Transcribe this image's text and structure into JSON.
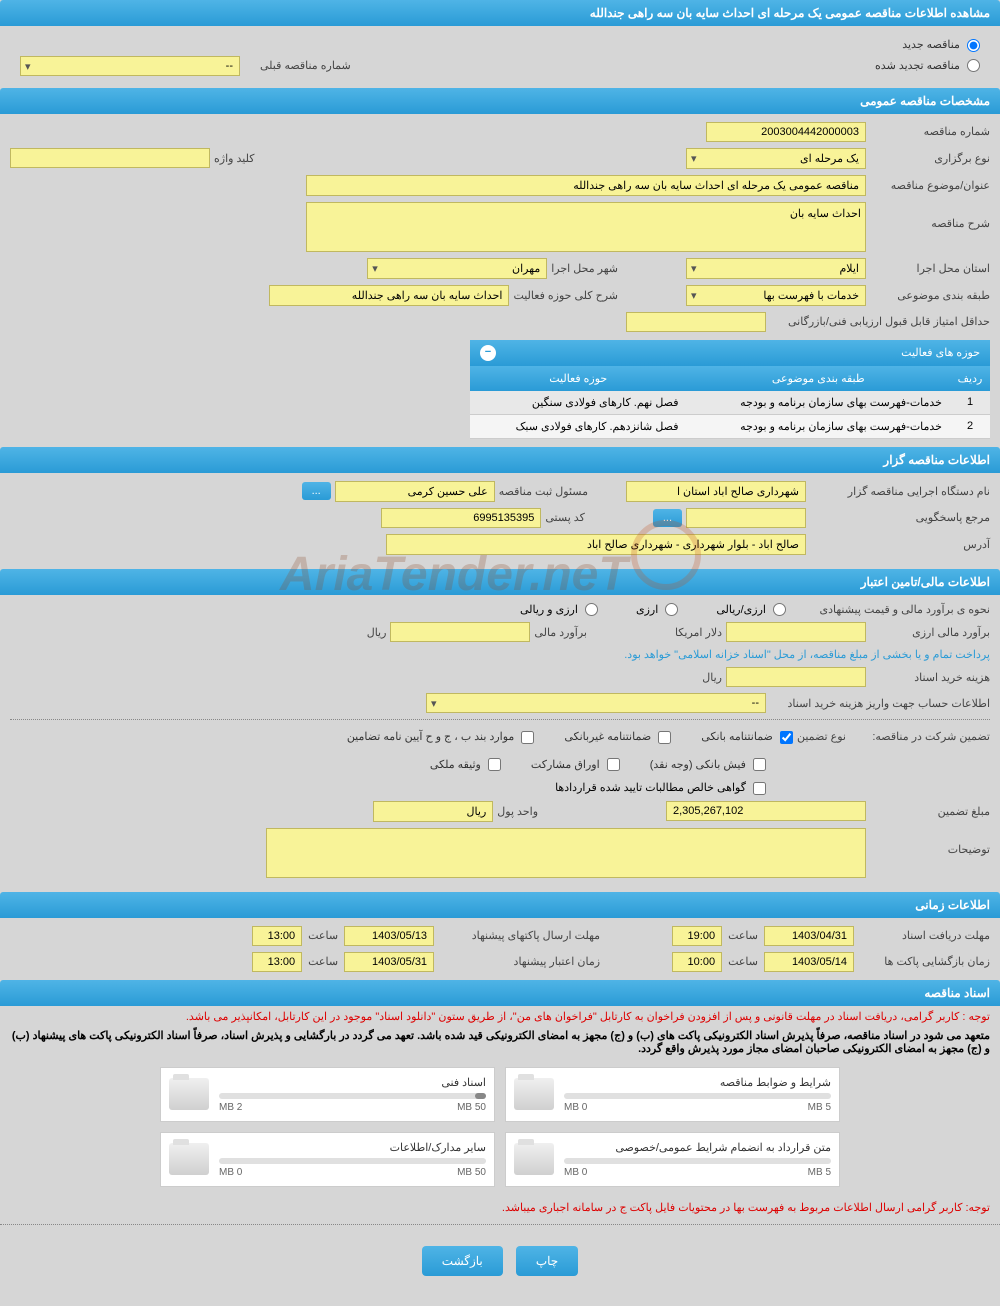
{
  "page_title": "مشاهده اطلاعات مناقصه عمومی یک مرحله ای احداث سایه بان سه راهی جندالله",
  "status": {
    "new_label": "مناقصه جدید",
    "renewed_label": "مناقصه تجدید شده",
    "prev_number_label": "شماره مناقصه قبلی",
    "prev_number_value": "--"
  },
  "sections": {
    "general": "مشخصات مناقصه عمومی",
    "activity": "حوزه های فعالیت",
    "holder": "اطلاعات مناقصه گزار",
    "financial": "اطلاعات مالی/تامین اعتبار",
    "time": "اطلاعات زمانی",
    "docs": "اسناد مناقصه"
  },
  "general": {
    "number_label": "شماره مناقصه",
    "number_value": "2003004442000003",
    "type_label": "نوع برگزاری",
    "type_value": "یک مرحله ای",
    "keyword_label": "کلید واژه",
    "keyword_value": "",
    "subject_label": "عنوان/موضوع مناقصه",
    "subject_value": "مناقصه عمومی یک مرحله ای احداث سایه بان سه راهی جندالله",
    "desc_label": "شرح مناقصه",
    "desc_value": "احداث سایه بان",
    "province_label": "استان محل اجرا",
    "province_value": "ایلام",
    "city_label": "شهر محل اجرا",
    "city_value": "مهران",
    "category_label": "طبقه بندی موضوعی",
    "category_value": "خدمات با فهرست بها",
    "scope_label": "شرح کلی حوزه فعالیت",
    "scope_value": "احداث سایه بان سه راهی جندالله",
    "min_score_label": "حداقل امتیاز قابل قبول ارزیابی فنی/بازرگانی",
    "min_score_value": ""
  },
  "activity_table": {
    "headers": {
      "row": "ردیف",
      "category": "طبقه بندی موضوعی",
      "area": "حوزه فعالیت"
    },
    "rows": [
      {
        "n": "1",
        "category": "خدمات-فهرست بهای سازمان برنامه و بودجه",
        "area": "فصل نهم. کارهای فولادی سنگین"
      },
      {
        "n": "2",
        "category": "خدمات-فهرست بهای سازمان برنامه و بودجه",
        "area": "فصل شانزدهم. کارهای فولادی سبک"
      }
    ]
  },
  "holder": {
    "org_label": "نام دستگاه اجرایی مناقصه گزار",
    "org_value": "شهرداری صالح اباد استان ا",
    "registrar_label": "مسئول ثبت مناقصه",
    "registrar_value": "علی حسین کرمی",
    "registrar_btn": "...",
    "contact_label": "مرجع پاسخگویی",
    "contact_value": "",
    "contact_btn": "...",
    "postal_label": "کد پستی",
    "postal_value": "6995135395",
    "address_label": "آدرس",
    "address_value": "صالح اباد - بلوار شهرداری - شهرداری صالح اباد"
  },
  "financial": {
    "estimate_method_label": "نحوه ی برآورد مالی و قیمت پیشنهادی",
    "opt_fx_rial": "ارزی/ریالی",
    "opt_fx": "ارزی",
    "opt_rial": "ارزی و ریالی",
    "fx_estimate_label": "برآورد مالی ارزی",
    "fx_estimate_value": "",
    "fx_unit": "دلار امریکا",
    "rial_estimate_label": "برآورد مالی",
    "rial_estimate_value": "",
    "rial_unit": "ریال",
    "treasury_note": "پرداخت تمام و یا بخشی از مبلغ مناقصه، از محل \"اسناد خزانه اسلامی\" خواهد بود.",
    "doc_cost_label": "هزینه خرید اسناد",
    "doc_cost_value": "",
    "doc_cost_unit": "ریال",
    "payment_account_label": "اطلاعات حساب جهت واریز هزینه خرید اسناد",
    "payment_account_value": "--",
    "guarantee_title": "تضمین شرکت در مناقصه:",
    "guarantee_type_label": "نوع تضمین",
    "guarantees": {
      "bank": "ضمانتنامه بانکی",
      "nonbank": "ضمانتنامه غیربانکی",
      "articles": "موارد بند ب ، ج و ح آیین نامه تضامین",
      "cash": "فیش بانکی (وجه نقد)",
      "bonds": "اوراق مشارکت",
      "property": "وثیقه ملکی",
      "receivables": "گواهی خالص مطالبات تایید شده قراردادها"
    },
    "guarantee_amount_label": "مبلغ تضمین",
    "guarantee_amount_value": "2,305,267,102",
    "currency_label": "واحد پول",
    "currency_value": "ریال",
    "notes_label": "توضیحات",
    "notes_value": ""
  },
  "time": {
    "receive_deadline_label": "مهلت دریافت اسناد",
    "receive_date": "1403/04/31",
    "receive_time_label": "ساعت",
    "receive_time": "19:00",
    "send_deadline_label": "مهلت ارسال پاکتهای پیشنهاد",
    "send_date": "1403/05/13",
    "send_time_label": "ساعت",
    "send_time": "13:00",
    "open_label": "زمان بازگشایی پاکت ها",
    "open_date": "1403/05/14",
    "open_time_label": "ساعت",
    "open_time": "10:00",
    "validity_label": "زمان اعتبار پیشنهاد",
    "validity_date": "1403/05/31",
    "validity_time_label": "ساعت",
    "validity_time": "13:00"
  },
  "docs": {
    "note1": "توجه : کاربر گرامی، دریافت اسناد در مهلت قانونی و پس از افزودن فراخوان به کارتابل \"فراخوان های من\"، از طریق ستون \"دانلود اسناد\" موجود در این کارتابل، امکانپذیر می باشد.",
    "note2": "متعهد می شود در اسناد مناقصه، صرفاً پذیرش اسناد الکترونیکی پاکت های (ب) و (ج) مجهز به امضای الکترونیکی قید شده باشد. تعهد می گردد در بارگشایی و پذیرش اسناد، صرفاً اسناد الکترونیکی پاکت های پیشنهاد (ب) و (ج) مجهز به امضای الکترونیکی صاحبان امضای مجاز مورد پذیرش واقع گردد.",
    "files": [
      {
        "title": "شرایط و ضوابط مناقصه",
        "used": "0 MB",
        "max": "5 MB",
        "pct": 0
      },
      {
        "title": "اسناد فنی",
        "used": "2 MB",
        "max": "50 MB",
        "pct": 4
      },
      {
        "title": "متن قرارداد به انضمام شرایط عمومی/خصوصی",
        "used": "0 MB",
        "max": "5 MB",
        "pct": 0
      },
      {
        "title": "سایر مدارک/اطلاعات",
        "used": "0 MB",
        "max": "50 MB",
        "pct": 0
      }
    ],
    "final_note": "توجه: کاربر گرامی ارسال اطلاعات مربوط به فهرست بها در محتویات فایل پاکت ج در سامانه اجباری میباشد."
  },
  "buttons": {
    "print": "چاپ",
    "back": "بازگشت"
  },
  "watermark": "AriaTender.neT",
  "colors": {
    "header_bg": "#2a9bd6",
    "field_bg": "#f8f398",
    "page_bg": "#d6d6d6"
  }
}
